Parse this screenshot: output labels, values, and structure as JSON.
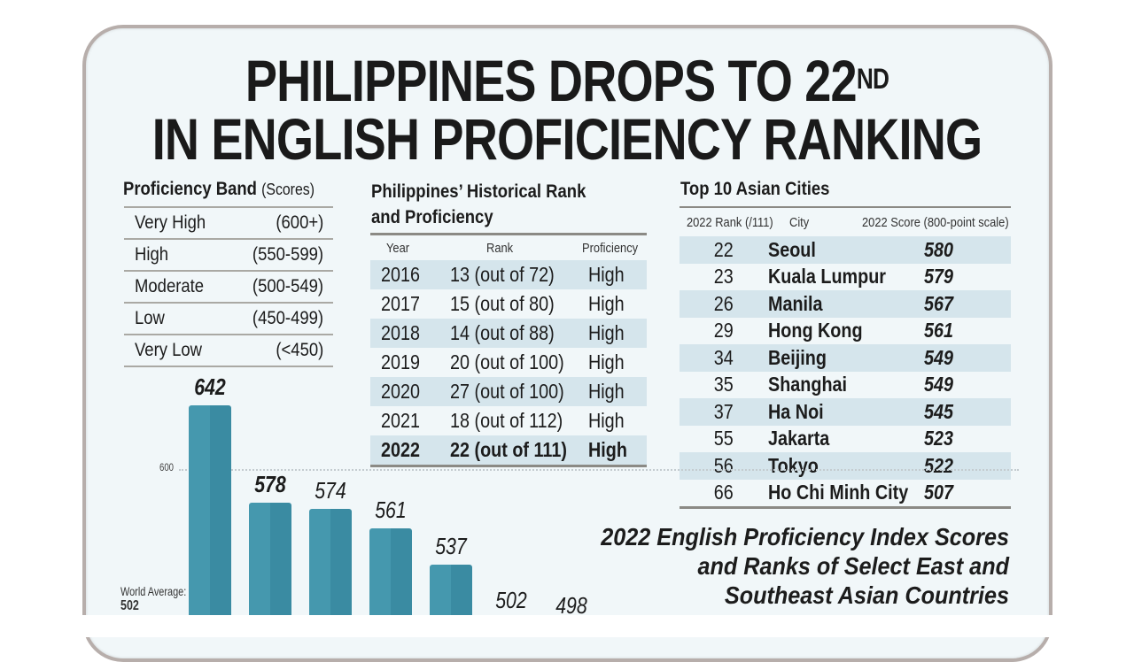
{
  "headline": {
    "line1_main": "PHILIPPINES DROPS TO 22",
    "line1_sup": "ND",
    "line2": "IN ENGLISH PROFICIENCY RANKING"
  },
  "proficiency_band": {
    "title": "Proficiency Band",
    "subtitle": "(Scores)",
    "rows": [
      {
        "label": "Very High",
        "range": "(600+)"
      },
      {
        "label": "High",
        "range": "(550-599)"
      },
      {
        "label": "Moderate",
        "range": "(500-549)"
      },
      {
        "label": "Low",
        "range": "(450-499)"
      },
      {
        "label": "Very Low",
        "range": "(<450)"
      }
    ]
  },
  "history": {
    "title_line1": "Philippines’ Historical Rank",
    "title_line2": "and Proficiency",
    "headers": {
      "year": "Year",
      "rank": "Rank",
      "proficiency": "Proficiency"
    },
    "rows": [
      {
        "year": "2016",
        "rank": "13 (out of 72)",
        "proficiency": "High"
      },
      {
        "year": "2017",
        "rank": "15 (out of 80)",
        "proficiency": "High"
      },
      {
        "year": "2018",
        "rank": "14 (out of 88)",
        "proficiency": "High"
      },
      {
        "year": "2019",
        "rank": "20 (out of 100)",
        "proficiency": "High"
      },
      {
        "year": "2020",
        "rank": "27 (out of 100)",
        "proficiency": "High"
      },
      {
        "year": "2021",
        "rank": "18 (out of 112)",
        "proficiency": "High"
      },
      {
        "year": "2022",
        "rank": "22 (out of 111)",
        "proficiency": "High"
      }
    ]
  },
  "cities": {
    "title": "Top 10 Asian Cities",
    "headers": {
      "rank": "2022 Rank (/111)",
      "city": "City",
      "score": "2022 Score (800-point scale)"
    },
    "rows": [
      {
        "rank": "22",
        "city": "Seoul",
        "score": "580"
      },
      {
        "rank": "23",
        "city": "Kuala Lumpur",
        "score": "579"
      },
      {
        "rank": "26",
        "city": "Manila",
        "score": "567"
      },
      {
        "rank": "29",
        "city": "Hong Kong",
        "score": "561"
      },
      {
        "rank": "34",
        "city": "Beijing",
        "score": "549"
      },
      {
        "rank": "35",
        "city": "Shanghai",
        "score": "549"
      },
      {
        "rank": "37",
        "city": "Ha Noi",
        "score": "545"
      },
      {
        "rank": "55",
        "city": "Jakarta",
        "score": "523"
      },
      {
        "rank": "56",
        "city": "Tokyo",
        "score": "522"
      },
      {
        "rank": "66",
        "city": "Ho Chi Minh City",
        "score": "507"
      }
    ]
  },
  "chart": {
    "title_line1": "2022 English Proficiency Index Scores",
    "title_line2": "and Ranks of Select East and",
    "title_line3": "Southeast Asian Countries",
    "tick_600": "600",
    "world_avg_label": "World Average:",
    "world_avg_value": "502",
    "bar_color_light": "#4598ae",
    "bar_color_dark": "#3a8ba2"
  },
  "chart_data": {
    "type": "bar",
    "title": "2022 English Proficiency Index Scores and Ranks of Select East and Southeast Asian Countries",
    "categories": [
      "",
      "",
      "",
      "",
      "",
      "",
      ""
    ],
    "values": [
      642,
      578,
      574,
      561,
      537,
      502,
      498
    ],
    "xlabel": "",
    "ylabel": "",
    "yticks": [
      600
    ],
    "reference_lines": [
      {
        "label": "World Average",
        "value": 502
      }
    ],
    "grid": "dotted line at 600",
    "note": "Category labels cropped out of view; only score labels visible"
  }
}
